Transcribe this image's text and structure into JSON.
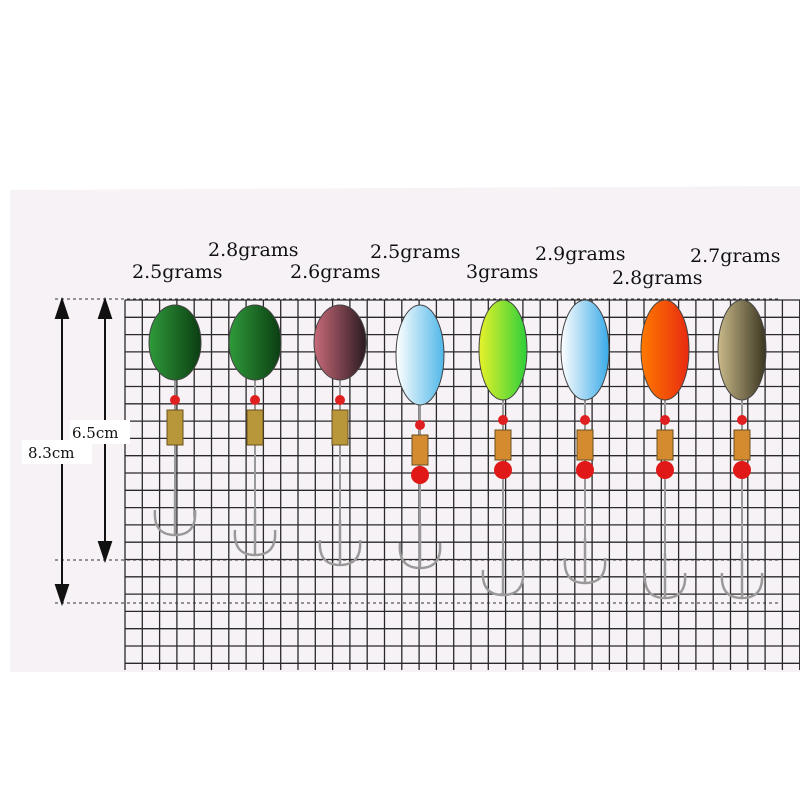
{
  "weights": [
    {
      "label": "2.5grams"
    },
    {
      "label": "2.8grams"
    },
    {
      "label": "2.6grams"
    },
    {
      "label": "2.5grams"
    },
    {
      "label": "3grams"
    },
    {
      "label": "2.9grams"
    },
    {
      "label": "2.8grams"
    },
    {
      "label": "2.7grams"
    }
  ],
  "dimensions": {
    "inner": "6.5cm",
    "outer": "8.3cm"
  }
}
